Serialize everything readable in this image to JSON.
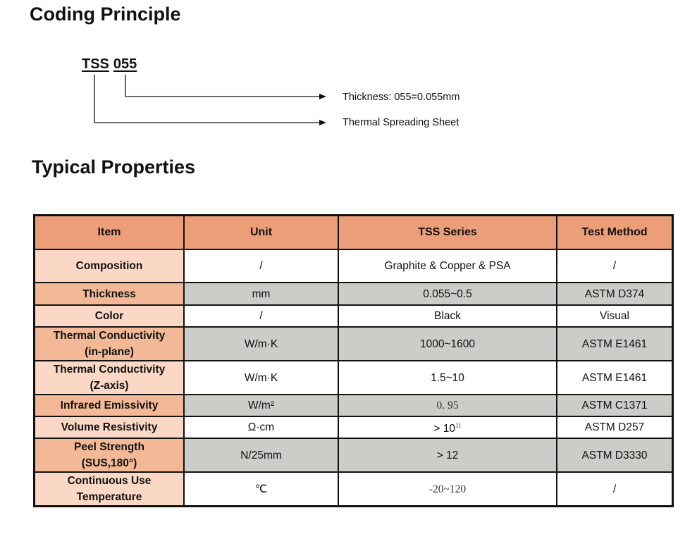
{
  "coding": {
    "title": "Coding Principle",
    "prefix": "TSS",
    "number": "055",
    "thickness_label": "Thickness: 055=0.055mm",
    "series_label": "Thermal Spreading Sheet"
  },
  "properties": {
    "title": "Typical Properties",
    "headers": [
      "Item",
      "Unit",
      "TSS Series",
      "Test Method"
    ],
    "rows": [
      {
        "item": "Composition",
        "unit": "/",
        "value": "Graphite & Copper & PSA",
        "method": "/"
      },
      {
        "item": "Thickness",
        "unit": "mm",
        "value": "0.055~0.5",
        "method": "ASTM D374"
      },
      {
        "item": "Color",
        "unit": "/",
        "value": "Black",
        "method": "Visual"
      },
      {
        "item": "Thermal Conductivity",
        "item2": "(in-plane)",
        "unit": "W/m·K",
        "value": "1000~1600",
        "method": "ASTM E1461"
      },
      {
        "item": "Thermal Conductivity",
        "item2": "(Z-axis)",
        "unit": "W/m·K",
        "value": "1.5~10",
        "method": "ASTM E1461"
      },
      {
        "item": "Infrared Emissivity",
        "unit": "W/m²",
        "value": "0. 95",
        "method": "ASTM C1371"
      },
      {
        "item": "Volume Resistivity",
        "unit": "Ω·cm",
        "value": "> 10",
        "sup": "11",
        "method": "ASTM D257"
      },
      {
        "item": "Peel Strength",
        "item2": "(SUS,180°)",
        "unit": "N/25mm",
        "value": "> 12",
        "method": "ASTM D3330"
      },
      {
        "item": "Continuous Use",
        "item2": "Temperature",
        "unit": "℃",
        "value": "-20~120",
        "method": "/"
      }
    ]
  }
}
